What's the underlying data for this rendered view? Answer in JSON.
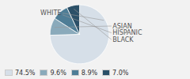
{
  "chart_data": {
    "type": "pie",
    "categories": [
      "WHITE",
      "ASIAN",
      "HISPANIC",
      "BLACK"
    ],
    "values": [
      74.5,
      9.6,
      8.9,
      7.0
    ],
    "value_labels": [
      "74.5%",
      "9.6%",
      "8.9%",
      "7.0%"
    ],
    "colors": [
      "#d6dfe8",
      "#8aaabb",
      "#4e7d96",
      "#2b5068"
    ],
    "legend": "lower left"
  }
}
